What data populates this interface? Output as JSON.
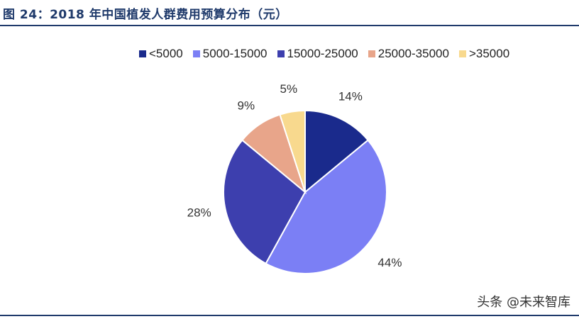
{
  "title": "图 24：2018 年中国植发人群费用预算分布（元）",
  "watermark": "头条 @未来智库",
  "chart_data": {
    "type": "pie",
    "categories": [
      "<5000",
      "5000-15000",
      "15000-25000",
      "25000-35000",
      ">35000"
    ],
    "values": [
      14,
      44,
      28,
      9,
      5
    ],
    "labels": [
      "14%",
      "44%",
      "28%",
      "9%",
      "5%"
    ],
    "colors": [
      "#1a2a8c",
      "#7b7ff5",
      "#3d3fae",
      "#e8a58a",
      "#f8d98e"
    ],
    "legend_position": "top-right"
  }
}
